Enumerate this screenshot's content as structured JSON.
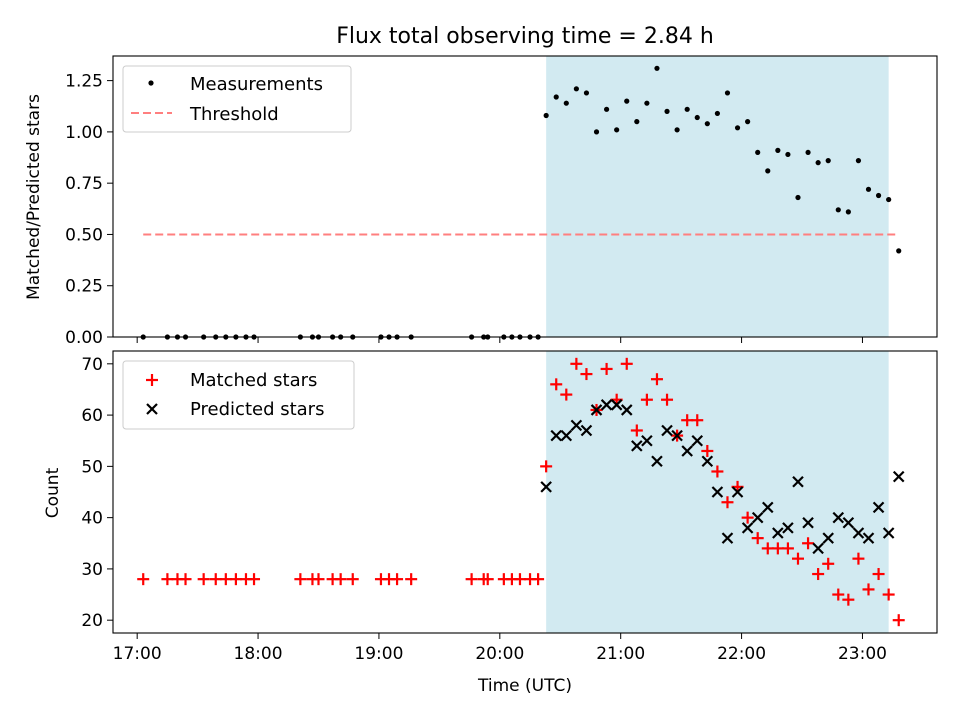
{
  "figure": {
    "title": "Flux total observing time = 2.84 h"
  },
  "chart_data": [
    {
      "type": "scatter",
      "ylabel": "Matched/Predicted stars",
      "xlim": [
        "16:48",
        "23:37"
      ],
      "ylim": [
        0,
        1.37
      ],
      "yticks": [
        "0.00",
        "0.25",
        "0.50",
        "0.75",
        "1.00",
        "1.25"
      ],
      "shaded_region": {
        "x": [
          "20:23",
          "23:13"
        ],
        "color": "#add8e6"
      },
      "legend": {
        "position": "top-left",
        "entries": [
          "Measurements",
          "Threshold"
        ]
      },
      "threshold": {
        "name": "Threshold",
        "y": 0.5,
        "x": [
          "17:03",
          "23:18"
        ],
        "color": "#ff7f7f",
        "style": "dashed"
      },
      "series": [
        {
          "name": "Measurements",
          "color": "#000000",
          "x": [
            "17:03",
            "17:15",
            "17:20",
            "17:24",
            "17:33",
            "17:39",
            "17:44",
            "17:49",
            "17:54",
            "17:58",
            "18:21",
            "18:27",
            "18:30",
            "18:37",
            "18:41",
            "18:47",
            "19:01",
            "19:05",
            "19:09",
            "19:16",
            "19:46",
            "19:52",
            "19:54",
            "20:02",
            "20:06",
            "20:10",
            "20:15",
            "20:19",
            "20:23",
            "20:28",
            "20:33",
            "20:38",
            "20:43",
            "20:48",
            "20:53",
            "20:58",
            "21:03",
            "21:08",
            "21:13",
            "21:18",
            "21:23",
            "21:28",
            "21:33",
            "21:38",
            "21:43",
            "21:48",
            "21:53",
            "21:58",
            "22:03",
            "22:08",
            "22:13",
            "22:18",
            "22:23",
            "22:28",
            "22:33",
            "22:38",
            "22:43",
            "22:48",
            "22:53",
            "22:58",
            "23:03",
            "23:08",
            "23:13",
            "23:18"
          ],
          "y": [
            0,
            0,
            0,
            0,
            0,
            0,
            0,
            0,
            0,
            0,
            0,
            0,
            0,
            0,
            0,
            0,
            0,
            0,
            0,
            0,
            0,
            0,
            0,
            0,
            0,
            0,
            0,
            0,
            1.08,
            1.17,
            1.14,
            1.21,
            1.19,
            1.0,
            1.11,
            1.01,
            1.15,
            1.05,
            1.14,
            1.31,
            1.1,
            1.01,
            1.11,
            1.07,
            1.04,
            1.09,
            1.19,
            1.02,
            1.05,
            0.9,
            0.81,
            0.91,
            0.89,
            0.68,
            0.9,
            0.85,
            0.86,
            0.62,
            0.61,
            0.86,
            0.72,
            0.69,
            0.67,
            0.42
          ]
        }
      ]
    },
    {
      "type": "scatter",
      "xlabel": "Time (UTC)",
      "ylabel": "Count",
      "xlim": [
        "16:48",
        "23:37"
      ],
      "ylim": [
        17.5,
        72.5
      ],
      "xticks": [
        "17:00",
        "18:00",
        "19:00",
        "20:00",
        "21:00",
        "22:00",
        "23:00"
      ],
      "yticks": [
        "20",
        "30",
        "40",
        "50",
        "60",
        "70"
      ],
      "shaded_region": {
        "x": [
          "20:23",
          "23:13"
        ],
        "color": "#add8e6"
      },
      "legend": {
        "position": "top-left",
        "entries": [
          "Matched stars",
          "Predicted stars"
        ]
      },
      "series": [
        {
          "name": "Matched stars",
          "marker": "plus",
          "color": "#ff0000",
          "x": [
            "17:03",
            "17:15",
            "17:20",
            "17:24",
            "17:33",
            "17:39",
            "17:44",
            "17:49",
            "17:54",
            "17:58",
            "18:21",
            "18:27",
            "18:30",
            "18:37",
            "18:41",
            "18:47",
            "19:01",
            "19:05",
            "19:09",
            "19:16",
            "19:46",
            "19:52",
            "19:54",
            "20:02",
            "20:06",
            "20:10",
            "20:15",
            "20:19",
            "20:23",
            "20:28",
            "20:33",
            "20:38",
            "20:43",
            "20:48",
            "20:53",
            "20:58",
            "21:03",
            "21:08",
            "21:13",
            "21:18",
            "21:23",
            "21:28",
            "21:33",
            "21:38",
            "21:43",
            "21:48",
            "21:53",
            "21:58",
            "22:03",
            "22:08",
            "22:13",
            "22:18",
            "22:23",
            "22:28",
            "22:33",
            "22:38",
            "22:43",
            "22:48",
            "22:53",
            "22:58",
            "23:03",
            "23:08",
            "23:13",
            "23:18"
          ],
          "y": [
            28,
            28,
            28,
            28,
            28,
            28,
            28,
            28,
            28,
            28,
            28,
            28,
            28,
            28,
            28,
            28,
            28,
            28,
            28,
            28,
            28,
            28,
            28,
            28,
            28,
            28,
            28,
            28,
            50,
            66,
            64,
            70,
            68,
            61,
            69,
            63,
            70,
            57,
            63,
            67,
            63,
            56,
            59,
            59,
            53,
            49,
            43,
            46,
            40,
            36,
            34,
            34,
            34,
            32,
            35,
            29,
            31,
            25,
            24,
            32,
            26,
            29,
            25,
            20
          ]
        },
        {
          "name": "Predicted stars",
          "marker": "x",
          "color": "#000000",
          "x": [
            "20:23",
            "20:28",
            "20:33",
            "20:38",
            "20:43",
            "20:48",
            "20:53",
            "20:58",
            "21:03",
            "21:08",
            "21:13",
            "21:18",
            "21:23",
            "21:28",
            "21:33",
            "21:38",
            "21:43",
            "21:48",
            "21:53",
            "21:58",
            "22:03",
            "22:08",
            "22:13",
            "22:18",
            "22:23",
            "22:28",
            "22:33",
            "22:38",
            "22:43",
            "22:48",
            "22:53",
            "22:58",
            "23:03",
            "23:08",
            "23:13",
            "23:18"
          ],
          "y": [
            46,
            56,
            56,
            58,
            57,
            61,
            62,
            62,
            61,
            54,
            55,
            51,
            57,
            56,
            53,
            55,
            51,
            45,
            36,
            45,
            38,
            40,
            42,
            37,
            38,
            47,
            39,
            34,
            36,
            40,
            39,
            37,
            36,
            42,
            37,
            48
          ]
        }
      ]
    }
  ]
}
